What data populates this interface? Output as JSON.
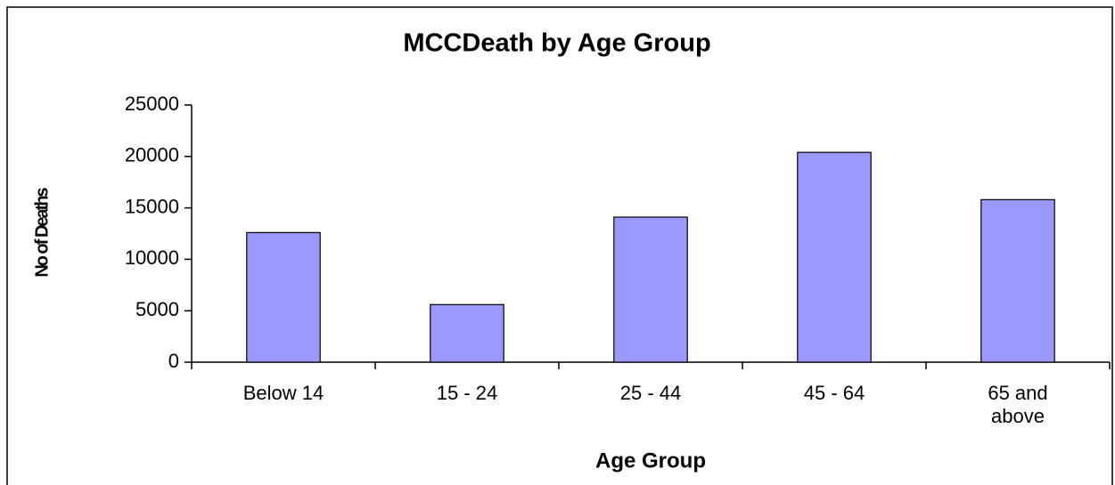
{
  "chart_data": {
    "type": "bar",
    "title": "MCCDeath by Age Group",
    "x_label": "Age Group",
    "y_label": "No of Deaths",
    "categories": [
      "Below 14",
      "15 - 24",
      "25 - 44",
      "45 - 64",
      "65 and above"
    ],
    "values": [
      12600,
      5600,
      14100,
      20400,
      15800
    ],
    "color": "#9999ff",
    "ylim": [
      0,
      25000
    ],
    "yticks": [
      0,
      5000,
      10000,
      15000,
      20000,
      25000
    ],
    "grid": false
  }
}
